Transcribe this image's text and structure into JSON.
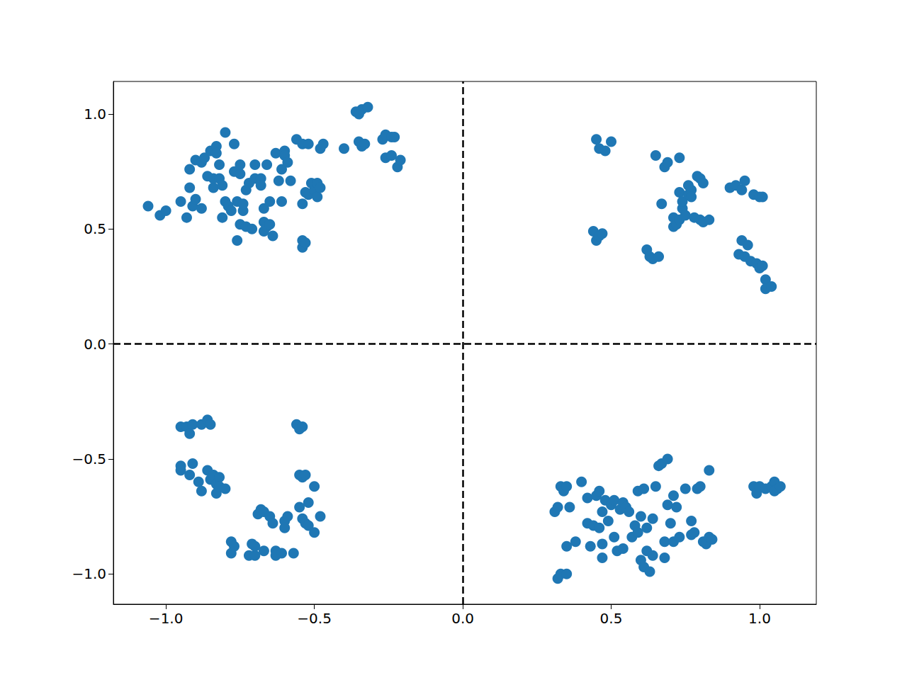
{
  "chart_data": {
    "type": "scatter",
    "color": "#1f77b4",
    "marker": "circle",
    "grid": false,
    "x": [
      -1.06,
      -1.02,
      -1.0,
      -0.95,
      -0.93,
      -0.92,
      -0.92,
      -0.91,
      -0.9,
      -0.9,
      -0.88,
      -0.88,
      -0.87,
      -0.86,
      -0.85,
      -0.84,
      -0.84,
      -0.83,
      -0.83,
      -0.82,
      -0.82,
      -0.81,
      -0.81,
      -0.8,
      -0.8,
      -0.79,
      -0.78,
      -0.77,
      -0.77,
      -0.76,
      -0.76,
      -0.75,
      -0.75,
      -0.75,
      -0.74,
      -0.74,
      -0.73,
      -0.73,
      -0.72,
      -0.71,
      -0.7,
      -0.7,
      -0.68,
      -0.68,
      -0.67,
      -0.67,
      -0.67,
      -0.66,
      -0.66,
      -0.65,
      -0.65,
      -0.64,
      -0.63,
      -0.62,
      -0.61,
      -0.61,
      -0.6,
      -0.6,
      -0.59,
      -0.58,
      -0.56,
      -0.54,
      -0.54,
      -0.54,
      -0.53,
      -0.54,
      -0.53,
      -0.52,
      -0.52,
      -0.51,
      -0.5,
      -0.49,
      -0.49,
      -0.48,
      -0.48,
      -0.47,
      -0.4,
      -0.36,
      -0.35,
      -0.34,
      -0.32,
      -0.35,
      -0.34,
      -0.33,
      -0.27,
      -0.26,
      -0.24,
      -0.23,
      -0.26,
      -0.24,
      -0.22,
      -0.21,
      0.45,
      0.46,
      0.48,
      0.5,
      0.44,
      0.45,
      0.46,
      0.47,
      0.62,
      0.63,
      0.64,
      0.66,
      0.67,
      0.65,
      0.68,
      0.69,
      0.73,
      0.71,
      0.71,
      0.72,
      0.73,
      0.73,
      0.74,
      0.74,
      0.75,
      0.76,
      0.76,
      0.77,
      0.77,
      0.78,
      0.79,
      0.8,
      0.8,
      0.81,
      0.81,
      0.83,
      0.9,
      0.92,
      0.94,
      0.95,
      0.94,
      0.93,
      0.95,
      0.96,
      0.97,
      0.99,
      1.0,
      1.01,
      0.98,
      1.0,
      1.01,
      1.02,
      1.02,
      1.04,
      -0.95,
      -0.93,
      -0.92,
      -0.91,
      -0.88,
      -0.86,
      -0.85,
      -0.95,
      -0.95,
      -0.92,
      -0.91,
      -0.89,
      -0.88,
      -0.86,
      -0.85,
      -0.84,
      -0.83,
      -0.83,
      -0.82,
      -0.82,
      -0.8,
      -0.78,
      -0.78,
      -0.77,
      -0.72,
      -0.71,
      -0.7,
      -0.7,
      -0.69,
      -0.68,
      -0.67,
      -0.67,
      -0.65,
      -0.64,
      -0.63,
      -0.63,
      -0.61,
      -0.6,
      -0.6,
      -0.59,
      -0.57,
      -0.56,
      -0.55,
      -0.54,
      -0.55,
      -0.54,
      -0.53,
      -0.55,
      -0.54,
      -0.53,
      -0.52,
      -0.52,
      -0.5,
      -0.5,
      -0.48,
      0.31,
      0.32,
      0.32,
      0.33,
      0.35,
      0.33,
      0.34,
      0.35,
      0.36,
      0.35,
      0.38,
      0.4,
      0.42,
      0.42,
      0.43,
      0.44,
      0.45,
      0.46,
      0.46,
      0.47,
      0.47,
      0.47,
      0.48,
      0.49,
      0.5,
      0.51,
      0.51,
      0.52,
      0.53,
      0.54,
      0.54,
      0.55,
      0.56,
      0.57,
      0.58,
      0.59,
      0.59,
      0.6,
      0.6,
      0.61,
      0.61,
      0.62,
      0.62,
      0.63,
      0.64,
      0.64,
      0.65,
      0.66,
      0.67,
      0.68,
      0.68,
      0.69,
      0.69,
      0.7,
      0.71,
      0.71,
      0.72,
      0.73,
      0.75,
      0.77,
      0.77,
      0.78,
      0.79,
      0.8,
      0.81,
      0.82,
      0.83,
      0.83,
      0.84,
      0.98,
      0.99,
      1.0,
      1.02,
      1.04,
      1.05,
      1.05,
      1.06,
      1.07
    ],
    "values": [
      0.6,
      0.56,
      0.58,
      0.62,
      0.55,
      0.68,
      0.76,
      0.6,
      0.8,
      0.63,
      0.59,
      0.79,
      0.81,
      0.73,
      0.84,
      0.68,
      0.72,
      0.86,
      0.83,
      0.72,
      0.78,
      0.55,
      0.69,
      0.92,
      0.62,
      0.6,
      0.58,
      0.75,
      0.87,
      0.45,
      0.62,
      0.52,
      0.74,
      0.78,
      0.58,
      0.61,
      0.67,
      0.51,
      0.7,
      0.5,
      0.72,
      0.78,
      0.72,
      0.69,
      0.53,
      0.49,
      0.59,
      0.78,
      0.51,
      0.52,
      0.62,
      0.47,
      0.83,
      0.71,
      0.76,
      0.62,
      0.84,
      0.82,
      0.79,
      0.71,
      0.89,
      0.87,
      0.42,
      0.45,
      0.44,
      0.61,
      0.66,
      0.87,
      0.65,
      0.7,
      0.67,
      0.7,
      0.64,
      0.68,
      0.85,
      0.87,
      0.85,
      1.01,
      1.0,
      1.02,
      1.03,
      0.88,
      0.86,
      0.87,
      0.89,
      0.91,
      0.9,
      0.9,
      0.81,
      0.82,
      0.77,
      0.8,
      0.89,
      0.85,
      0.84,
      0.88,
      0.49,
      0.45,
      0.47,
      0.48,
      0.41,
      0.38,
      0.37,
      0.38,
      0.61,
      0.82,
      0.77,
      0.79,
      0.81,
      0.55,
      0.51,
      0.52,
      0.54,
      0.66,
      0.59,
      0.62,
      0.56,
      0.69,
      0.65,
      0.67,
      0.64,
      0.55,
      0.73,
      0.72,
      0.54,
      0.7,
      0.53,
      0.54,
      0.68,
      0.69,
      0.67,
      0.71,
      0.45,
      0.39,
      0.38,
      0.43,
      0.36,
      0.35,
      0.33,
      0.34,
      0.65,
      0.64,
      0.64,
      0.28,
      0.24,
      0.25,
      -0.36,
      -0.36,
      -0.39,
      -0.35,
      -0.35,
      -0.33,
      -0.35,
      -0.53,
      -0.55,
      -0.57,
      -0.52,
      -0.6,
      -0.64,
      -0.55,
      -0.59,
      -0.57,
      -0.61,
      -0.65,
      -0.58,
      -0.62,
      -0.63,
      -0.86,
      -0.91,
      -0.88,
      -0.92,
      -0.87,
      -0.92,
      -0.88,
      -0.74,
      -0.72,
      -0.73,
      -0.9,
      -0.75,
      -0.78,
      -0.9,
      -0.92,
      -0.91,
      -0.77,
      -0.8,
      -0.75,
      -0.91,
      -0.35,
      -0.37,
      -0.36,
      -0.57,
      -0.58,
      -0.57,
      -0.71,
      -0.76,
      -0.78,
      -0.69,
      -0.79,
      -0.62,
      -0.82,
      -0.75,
      -0.73,
      -0.71,
      -1.02,
      -1.0,
      -1.0,
      -0.62,
      -0.64,
      -0.62,
      -0.71,
      -0.88,
      -0.86,
      -0.6,
      -0.67,
      -0.78,
      -0.88,
      -0.79,
      -0.66,
      -0.64,
      -0.8,
      -0.73,
      -0.87,
      -0.93,
      -0.68,
      -0.77,
      -0.7,
      -0.68,
      -0.84,
      -0.9,
      -0.72,
      -0.69,
      -0.89,
      -0.71,
      -0.73,
      -0.84,
      -0.79,
      -0.82,
      -0.64,
      -0.75,
      -0.94,
      -0.97,
      -0.63,
      -0.8,
      -0.9,
      -0.99,
      -0.92,
      -0.76,
      -0.62,
      -0.53,
      -0.52,
      -0.86,
      -0.93,
      -0.5,
      -0.7,
      -0.78,
      -0.66,
      -0.86,
      -0.71,
      -0.84,
      -0.63,
      -0.77,
      -0.83,
      -0.82,
      -0.63,
      -0.62,
      -0.86,
      -0.87,
      -0.55,
      -0.84,
      -0.85,
      -0.62,
      -0.65,
      -0.62,
      -0.63,
      -0.62,
      -0.6,
      -0.64,
      -0.63,
      -0.62
    ],
    "xlim": [
      -1.177,
      1.191
    ],
    "ylim": [
      -1.132,
      1.142
    ],
    "xticks": [
      {
        "value": -1,
        "label": "−1.0"
      },
      {
        "value": -0.5,
        "label": "−0.5"
      },
      {
        "value": 0,
        "label": "0.0"
      },
      0.5,
      {
        "value": 1,
        "label": "1.0"
      }
    ],
    "yticks": [
      {
        "value": -1,
        "label": "−1.0"
      },
      {
        "value": -0.5,
        "label": "−0.5"
      },
      {
        "value": 0,
        "label": "0.0"
      },
      0.5,
      {
        "value": 1,
        "label": "1.0"
      }
    ],
    "reference_lines": [
      {
        "axis": "x",
        "value": 0,
        "line_style": "dashed",
        "color": "#000000"
      },
      {
        "axis": "y",
        "value": 0,
        "line_style": "dashed",
        "color": "#000000"
      }
    ]
  }
}
